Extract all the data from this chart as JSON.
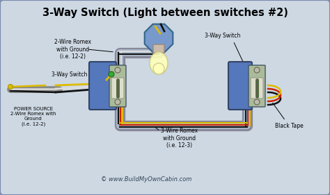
{
  "title": "3-Way Switch (Light between switches #2)",
  "bg_color": "#cdd8e3",
  "border_color": "#9aaabb",
  "fig_bg": "#9aaabb",
  "labels": {
    "romex_22_top": "2-Wire Romex\nwith Ground\n(i.e. 12-2)",
    "switch1_label": "3-Way Switch",
    "power_source": "POWER SOURCE\n2-Wire Romex with\nGround\n(i.e. 12-2)",
    "romex_123": "3-Wire Romex\nwith Ground\n(i.e. 12-3)",
    "switch2_label": "3-Way Switch",
    "black_tape": "Black Tape",
    "copyright": "© www.BuildMyOwnCabin.com"
  },
  "colors": {
    "white_wire": "#dddddd",
    "black_wire": "#111111",
    "red_wire": "#cc2200",
    "yellow_wire": "#ddbb00",
    "green_wire": "#226600",
    "gray_conduit_outer": "#888899",
    "gray_conduit_inner": "#aabbcc",
    "switch_box_blue": "#5577bb",
    "switch_body_gray": "#aabbaa",
    "bulb_glass": "#99bbdd",
    "bulb_yellow": "#ffffbb",
    "fixture_blue": "#7799cc"
  }
}
